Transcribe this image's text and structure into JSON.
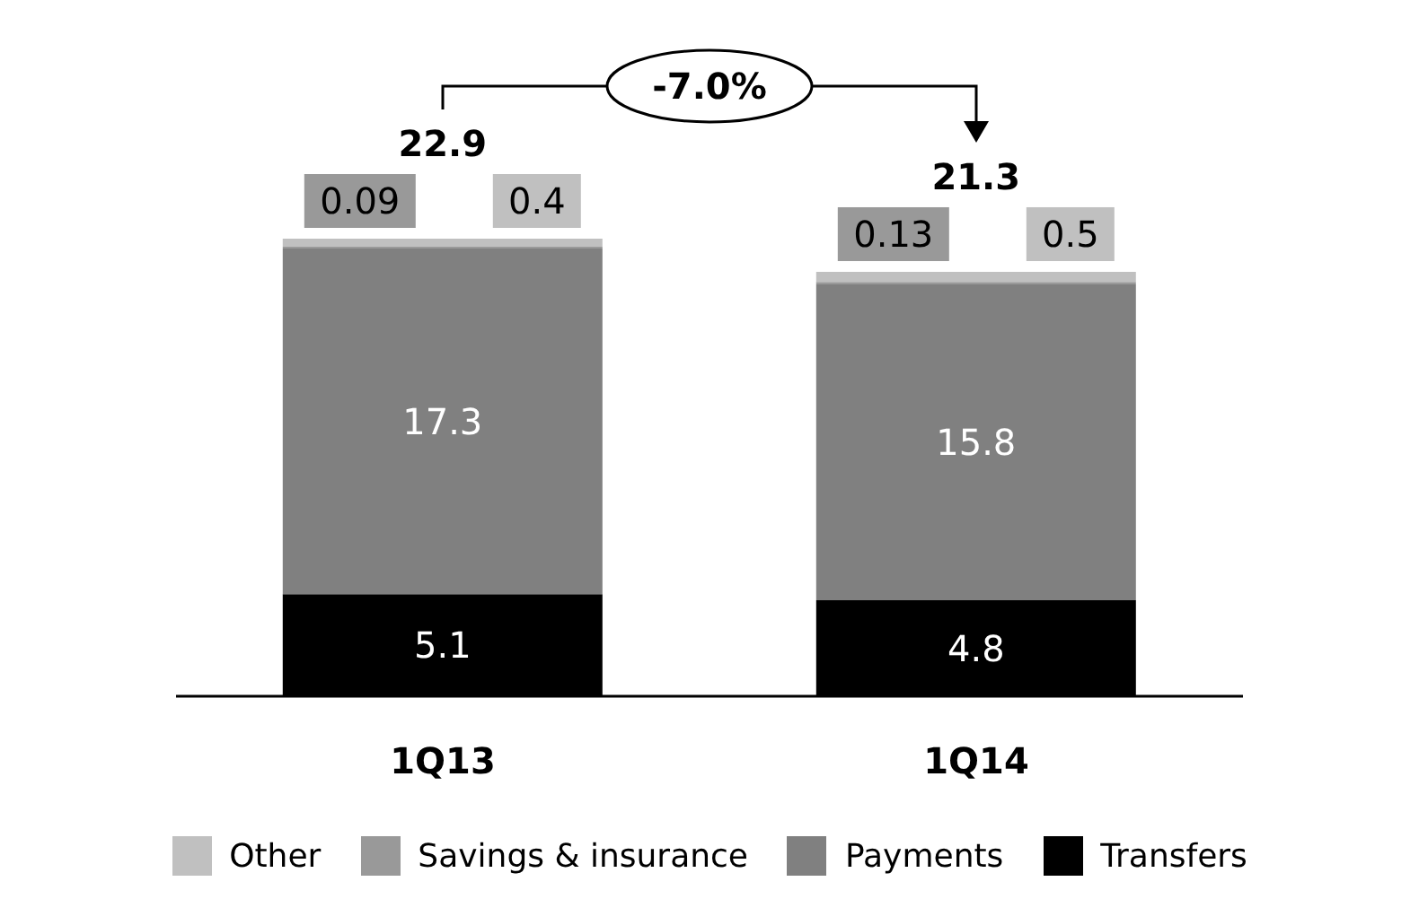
{
  "chart_data": {
    "type": "bar",
    "stacked": true,
    "categories": [
      "1Q13",
      "1Q14"
    ],
    "series": [
      {
        "name": "Transfers",
        "color": "#000000",
        "values": [
          5.1,
          4.8
        ]
      },
      {
        "name": "Payments",
        "color": "#808080",
        "values": [
          17.3,
          15.8
        ]
      },
      {
        "name": "Savings & insurance",
        "color": "#999999",
        "values": [
          0.09,
          0.13
        ]
      },
      {
        "name": "Other",
        "color": "#c0c0c0",
        "values": [
          0.4,
          0.5
        ]
      }
    ],
    "data_labels": true,
    "totals": [
      "22.9",
      "21.3"
    ],
    "annotations": [
      "-7.0%"
    ],
    "legend": "bottom",
    "grid": false
  }
}
